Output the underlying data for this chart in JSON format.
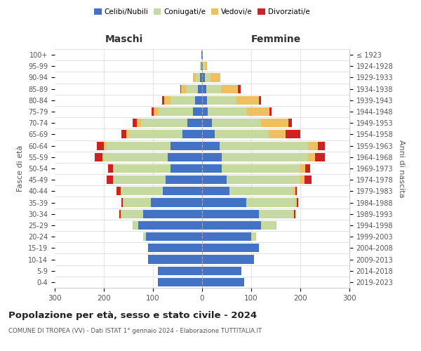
{
  "age_groups": [
    "0-4",
    "5-9",
    "10-14",
    "15-19",
    "20-24",
    "25-29",
    "30-34",
    "35-39",
    "40-44",
    "45-49",
    "50-54",
    "55-59",
    "60-64",
    "65-69",
    "70-74",
    "75-79",
    "80-84",
    "85-89",
    "90-94",
    "95-99",
    "100+"
  ],
  "birth_years": [
    "2019-2023",
    "2014-2018",
    "2009-2013",
    "2004-2008",
    "1999-2003",
    "1994-1998",
    "1989-1993",
    "1984-1988",
    "1979-1983",
    "1974-1978",
    "1969-1973",
    "1964-1968",
    "1959-1963",
    "1954-1958",
    "1949-1953",
    "1944-1948",
    "1939-1943",
    "1934-1938",
    "1929-1933",
    "1924-1928",
    "≤ 1923"
  ],
  "maschi": {
    "celibi": [
      90,
      90,
      110,
      110,
      115,
      130,
      120,
      105,
      80,
      75,
      65,
      70,
      65,
      40,
      30,
      18,
      15,
      8,
      5,
      1,
      1
    ],
    "coniugati": [
      0,
      0,
      0,
      0,
      5,
      10,
      45,
      55,
      85,
      105,
      115,
      130,
      130,
      110,
      95,
      70,
      50,
      25,
      8,
      2,
      0
    ],
    "vedovi": [
      0,
      0,
      0,
      0,
      0,
      1,
      1,
      1,
      1,
      2,
      2,
      3,
      5,
      5,
      8,
      10,
      12,
      10,
      5,
      1,
      0
    ],
    "divorziati": [
      0,
      0,
      0,
      0,
      0,
      1,
      2,
      3,
      8,
      12,
      10,
      15,
      15,
      10,
      8,
      5,
      5,
      2,
      0,
      0,
      0
    ]
  },
  "femmine": {
    "nubili": [
      85,
      80,
      105,
      115,
      100,
      120,
      115,
      90,
      55,
      50,
      40,
      40,
      35,
      25,
      20,
      12,
      10,
      8,
      5,
      2,
      1
    ],
    "coniugate": [
      0,
      0,
      0,
      0,
      10,
      30,
      70,
      100,
      130,
      150,
      160,
      175,
      180,
      110,
      100,
      80,
      60,
      30,
      12,
      3,
      0
    ],
    "vedove": [
      0,
      0,
      0,
      0,
      0,
      1,
      2,
      3,
      5,
      8,
      10,
      15,
      20,
      35,
      55,
      45,
      45,
      35,
      20,
      5,
      0
    ],
    "divorziate": [
      0,
      0,
      0,
      0,
      0,
      1,
      3,
      3,
      3,
      15,
      10,
      20,
      15,
      30,
      8,
      5,
      5,
      5,
      0,
      0,
      0
    ]
  },
  "color_celibi": "#4472c4",
  "color_coniugati": "#c5d9a0",
  "color_vedovi": "#f0c060",
  "color_divorziati": "#cc2222",
  "xlim": 300,
  "title": "Popolazione per età, sesso e stato civile - 2024",
  "subtitle": "COMUNE DI TROPEA (VV) - Dati ISTAT 1° gennaio 2024 - Elaborazione TUTTITALIA.IT",
  "ylabel_left": "Fasce di età",
  "ylabel_right": "Anni di nascita",
  "xlabel_maschi": "Maschi",
  "xlabel_femmine": "Femmine",
  "bg_color": "#ffffff",
  "grid_color": "#cccccc"
}
